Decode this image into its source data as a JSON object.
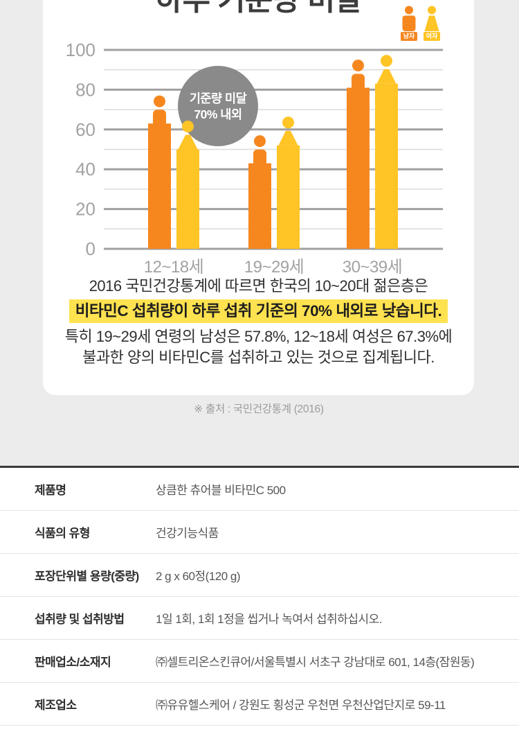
{
  "page": {
    "background": "#ECECEC"
  },
  "infographic": {
    "title": "하루 기준량 미달",
    "legend": [
      {
        "label": "남자",
        "color": "#F6871F",
        "icon": "male-person-icon"
      },
      {
        "label": "여자",
        "color": "#FFC425",
        "icon": "female-person-icon"
      }
    ],
    "annotation": {
      "line1": "기준량 미달",
      "line2": "70% 내외",
      "bg": "#8A8A8A",
      "text_color": "#FFFFFF"
    },
    "description": {
      "line1": "2016 국민건강통계에 따르면 한국의 10~20대 젊은층은",
      "line2_highlight": "비타민C 섭취량이 하루 섭취 기준의 70% 내외로 낮습니다.",
      "line3": "특히 19~29세 연령의 남성은 57.8%, 12~18세 여성은 67.3%에",
      "line4": "불과한 양의 비타민C를 섭취하고 있는 것으로 집계됩니다.",
      "highlight_bg": "#FFE24F"
    },
    "source": "※ 출처 : 국민건강통계 (2016)"
  },
  "chart_data": {
    "type": "bar",
    "subtype": "pictogram-person-bars",
    "title": "하루 기준량 미달",
    "categories": [
      "12~18세",
      "19~29세",
      "30~39세"
    ],
    "series": [
      {
        "name": "남자",
        "color": "#F6871F",
        "values": [
          75,
          57.8,
          93
        ],
        "body_values": [
          63,
          43,
          81
        ]
      },
      {
        "name": "여자",
        "color": "#FFC425",
        "values": [
          67.3,
          65,
          95
        ],
        "body_values": [
          50,
          52,
          83
        ]
      }
    ],
    "xlabel": "",
    "ylabel": "",
    "ylim": [
      0,
      100
    ],
    "yticks": [
      0,
      20,
      40,
      60,
      80,
      100
    ],
    "minor_grid_step": 10,
    "grid": true,
    "legend_position": "top-right",
    "annotation": "기준량 미달 70% 내외",
    "colors": {
      "major_grid": "#A0A0A0",
      "minor_grid": "#DBDBDB",
      "tick_text": "#A2A2A2"
    }
  },
  "spec_table": {
    "rows": [
      {
        "label": "제품명",
        "value": "상큼한 츄어블 비타민C 500"
      },
      {
        "label": "식품의 유형",
        "value": "건강기능식품"
      },
      {
        "label": "포장단위별 용량(중량)",
        "value": "2 g x 60정(120 g)"
      },
      {
        "label": "섭취량 및 섭취방법",
        "value": "1일 1회, 1회 1정을 씹거나 녹여서 섭취하십시오."
      },
      {
        "label": "판매업소/소재지",
        "value": "㈜셀트리온스킨큐어/서울특별시 서초구 강남대로 601, 14층(잠원동)"
      },
      {
        "label": "제조업소",
        "value": "㈜유유헬스케어 / 강원도 횡성군 우천면 우천산업단지로 59-11"
      }
    ]
  }
}
